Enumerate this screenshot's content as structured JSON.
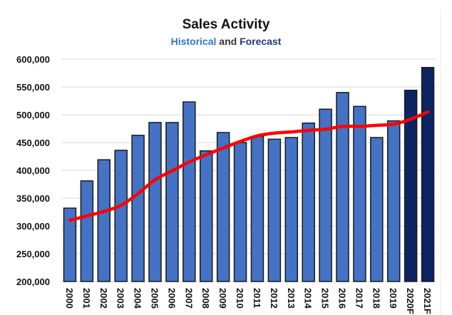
{
  "chart_data": {
    "type": "bar",
    "title": "Sales Activity",
    "subtitle": {
      "parts": [
        {
          "text": "Historical",
          "color": "#2e75c6"
        },
        {
          "text": " and ",
          "color": "#333333"
        },
        {
          "text": "Forecast",
          "color": "#1f3a7a"
        }
      ]
    },
    "xlabel": "",
    "ylabel": "",
    "ylim": [
      200000,
      600000
    ],
    "yticks": [
      200000,
      250000,
      300000,
      350000,
      400000,
      450000,
      500000,
      550000,
      600000
    ],
    "ytick_labels": [
      "200,000",
      "250,000",
      "300,000",
      "350,000",
      "400,000",
      "450,000",
      "500,000",
      "550,000",
      "600,000"
    ],
    "grid": true,
    "legend": "none",
    "categories": [
      "2000",
      "2001",
      "2002",
      "2003",
      "2004",
      "2005",
      "2006",
      "2007",
      "2008",
      "2009",
      "2010",
      "2011",
      "2012",
      "2013",
      "2014",
      "2015",
      "2016",
      "2017",
      "2018",
      "2019",
      "2020F",
      "2021F"
    ],
    "series": [
      {
        "name": "Sales",
        "kind": "bar",
        "values": [
          332000,
          381000,
          419000,
          436000,
          463000,
          486000,
          486000,
          523000,
          435000,
          468000,
          450000,
          461000,
          456000,
          459000,
          485000,
          510000,
          540000,
          515000,
          459000,
          489000,
          544000,
          585000
        ],
        "color_historical": "#4472c4",
        "color_forecast": "#0d2463",
        "forecast_from_index": 20
      },
      {
        "name": "Trend",
        "kind": "line",
        "values": [
          310000,
          318000,
          326000,
          337000,
          358000,
          383000,
          399000,
          415000,
          428000,
          440000,
          452000,
          462000,
          467000,
          469000,
          472000,
          474000,
          479000,
          479000,
          481000,
          483000,
          492000,
          505000
        ],
        "color": "#ff0000"
      }
    ]
  }
}
